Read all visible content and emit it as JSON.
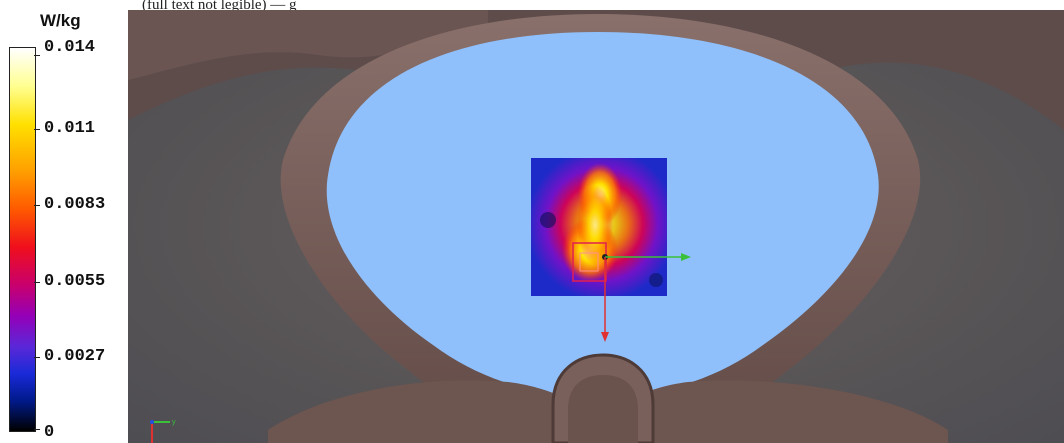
{
  "legend": {
    "unit": "W/kg",
    "ticks": [
      "0.014",
      "0.011",
      "0.0083",
      "0.0055",
      "0.0027",
      "0"
    ]
  },
  "caption": "(full text not legible) — g",
  "colors": {
    "phantom_fill": "#8fc0fb",
    "tissue": "#6d5550",
    "tissue_light": "#8a706b",
    "background_tissue": "#5f5a5a",
    "field_low": "#1e28c8",
    "field_high": "#ffff60"
  },
  "icons": {
    "x_axis_arrow": "green-arrow-icon",
    "y_axis_arrow": "red-arrow-icon",
    "orientation_triad": "axis-triad-icon"
  }
}
